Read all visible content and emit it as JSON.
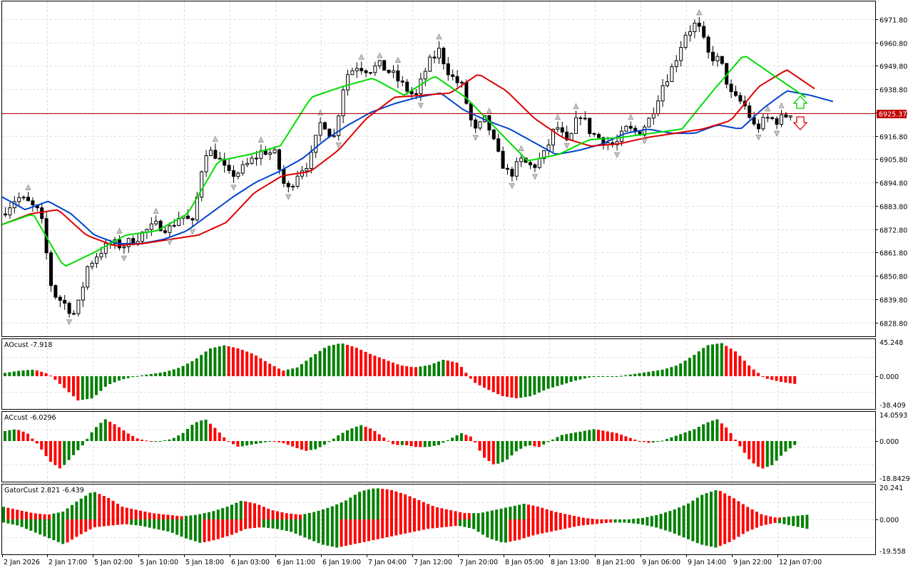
{
  "colors": {
    "bull_bar": "#008000",
    "bear_bar": "#ff0000",
    "jaw": "#0044cc",
    "teeth": "#dd0000",
    "lips": "#00dd00",
    "price_line": "#c00000",
    "grid": "#dcdcdc",
    "fractal": "#909090"
  },
  "main_chart": {
    "price_axis_labels": [
      "6971.80",
      "6960.80",
      "6949.80",
      "6938.80",
      "6927.80",
      "6916.80",
      "6905.80",
      "6894.80",
      "6883.80",
      "6872.80",
      "6861.80",
      "6850.80",
      "6839.80",
      "6828.80"
    ],
    "current_price": "6925.37",
    "up_arrow_icon": "hollow-up-arrow",
    "down_arrow_icon": "hollow-down-arrow"
  },
  "time_axis_labels": [
    "2 Jan 2026",
    "2 Jan 17:00",
    "5 Jan 02:00",
    "5 Jan 10:00",
    "5 Jan 18:00",
    "6 Jan 03:00",
    "6 Jan 11:00",
    "6 Jan 19:00",
    "7 Jan 04:00",
    "7 Jan 12:00",
    "7 Jan 20:00",
    "8 Jan 05:00",
    "8 Jan 13:00",
    "8 Jan 21:00",
    "9 Jan 06:00",
    "9 Jan 14:00",
    "9 Jan 22:00",
    "12 Jan 07:00"
  ],
  "panes": {
    "ao": {
      "title": "AOcust -7.918",
      "scale": [
        "45.248",
        "0.000",
        "-38.409"
      ]
    },
    "ac": {
      "title": "ACcust -6.0296",
      "scale": [
        "14.0593",
        "0.000",
        "-18.8429"
      ]
    },
    "gator": {
      "title": "GatorCust 2.821 -6.439",
      "scale": [
        "20.241",
        "0.000",
        "-19.558"
      ]
    }
  },
  "chart_data": [
    {
      "type": "candlestick",
      "title": "",
      "ylim": [
        6822.3,
        6980.2
      ],
      "y_ticks": [
        6971.8,
        6960.8,
        6949.8,
        6938.8,
        6927.8,
        6916.8,
        6905.8,
        6894.8,
        6883.8,
        6872.8,
        6861.8,
        6850.8,
        6839.8,
        6828.8
      ],
      "current_price": 6925.37,
      "close_path": [
        6882,
        6888,
        6885,
        6880,
        6843,
        6838,
        6832,
        6855,
        6862,
        6866,
        6865,
        6868,
        6872,
        6875,
        6873,
        6880,
        6875,
        6910,
        6908,
        6898,
        6900,
        6905,
        6910,
        6908,
        6890,
        6900,
        6905,
        6925,
        6915,
        6945,
        6950,
        6948,
        6950,
        6946,
        6940,
        6935,
        6950,
        6957,
        6945,
        6940,
        6918,
        6925,
        6908,
        6898,
        6905,
        6902,
        6908,
        6922,
        6912,
        6928,
        6918,
        6915,
        6912,
        6920,
        6918,
        6925,
        6940,
        6950,
        6965,
        6970,
        6955,
        6952,
        6935,
        6932,
        6920,
        6925,
        6924,
        6928
      ],
      "overlays": [
        {
          "name": "",
          "color": "jaw",
          "values": [
            6888,
            6882,
            6886,
            6880,
            6870,
            6866,
            6866,
            6868,
            6872,
            6880,
            6888,
            6895,
            6900,
            6906,
            6915,
            6922,
            6928,
            6932,
            6935,
            6937,
            6929,
            6924,
            6920,
            6914,
            6908,
            6910,
            6913,
            6918,
            6920,
            6918,
            6918,
            6922,
            6920,
            6930,
            6938,
            6936,
            6933
          ]
        },
        {
          "name": "",
          "color": "teeth",
          "values": [
            6875,
            6880,
            6882,
            6870,
            6865,
            6866,
            6868,
            6870,
            6876,
            6890,
            6898,
            6900,
            6910,
            6925,
            6935,
            6936,
            6937,
            6946,
            6938,
            6925,
            6916,
            6912,
            6913,
            6916,
            6918,
            6920,
            6924,
            6940,
            6948,
            6939
          ]
        },
        {
          "name": "",
          "color": "lips",
          "values": [
            6875,
            6880,
            6855,
            6862,
            6870,
            6872,
            6880,
            6905,
            6908,
            6912,
            6935,
            6940,
            6944,
            6936,
            6945,
            6935,
            6920,
            6905,
            6908,
            6915,
            6916,
            6918,
            6920,
            6938,
            6955,
            6945,
            6935
          ]
        }
      ]
    },
    {
      "type": "bar",
      "title": "AOcust -7.918",
      "ylim": [
        -38.409,
        45.248
      ]
    },
    {
      "type": "bar",
      "title": "ACcust -6.0296",
      "ylim": [
        -18.8429,
        14.0593
      ]
    },
    {
      "type": "bar",
      "title": "GatorCust 2.821 -6.439",
      "ylim": [
        -19.558,
        20.241
      ]
    }
  ]
}
